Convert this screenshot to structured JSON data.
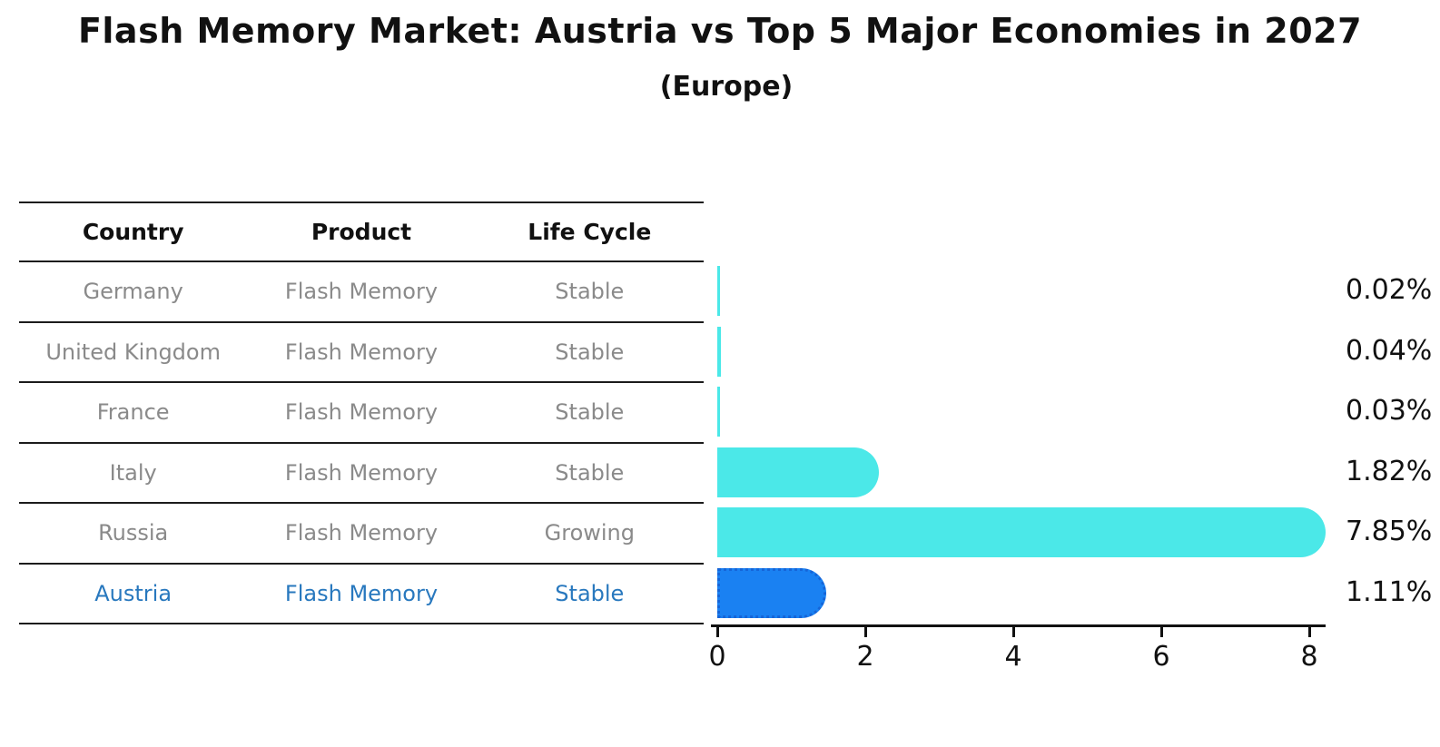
{
  "title": "Flash Memory Market: Austria vs Top 5 Major Economies in 2027",
  "subtitle": "(Europe)",
  "table": {
    "headers": [
      "Country",
      "Product",
      "Life Cycle"
    ],
    "rows": [
      {
        "country": "Germany",
        "product": "Flash Memory",
        "life_cycle": "Stable",
        "highlight": false
      },
      {
        "country": "United Kingdom",
        "product": "Flash Memory",
        "life_cycle": "Stable",
        "highlight": false
      },
      {
        "country": "France",
        "product": "Flash Memory",
        "life_cycle": "Stable",
        "highlight": false
      },
      {
        "country": "Italy",
        "product": "Flash Memory",
        "life_cycle": "Stable",
        "highlight": false
      },
      {
        "country": "Russia",
        "product": "Flash Memory",
        "life_cycle": "Growing",
        "highlight": false
      },
      {
        "country": "Austria",
        "product": "Flash Memory",
        "life_cycle": "Stable",
        "highlight": true
      }
    ]
  },
  "chart_data": {
    "type": "bar",
    "orientation": "horizontal",
    "title": "Flash Memory Market: Austria vs Top 5 Major Economies in 2027 (Europe)",
    "categories": [
      "Germany",
      "United Kingdom",
      "France",
      "Italy",
      "Russia",
      "Austria"
    ],
    "values": [
      0.02,
      0.04,
      0.03,
      1.82,
      7.85,
      1.11
    ],
    "value_labels": [
      "0.02%",
      "0.04%",
      "0.03%",
      "1.82%",
      "7.85%",
      "1.11%"
    ],
    "unit": "%",
    "x_ticks": [
      0,
      2,
      4,
      6,
      8
    ],
    "xlim": [
      0,
      8.3
    ],
    "grid": false,
    "legend": false,
    "highlight_index": 5
  },
  "colors": {
    "default_bar": "#4BE8E8",
    "highlight_bar": "#1A81F2",
    "highlight_border": "#1565D8",
    "row_text": "#8a8a8a",
    "highlight_text": "#2878BE",
    "axis_text": "#111111",
    "background": "#ffffff"
  }
}
